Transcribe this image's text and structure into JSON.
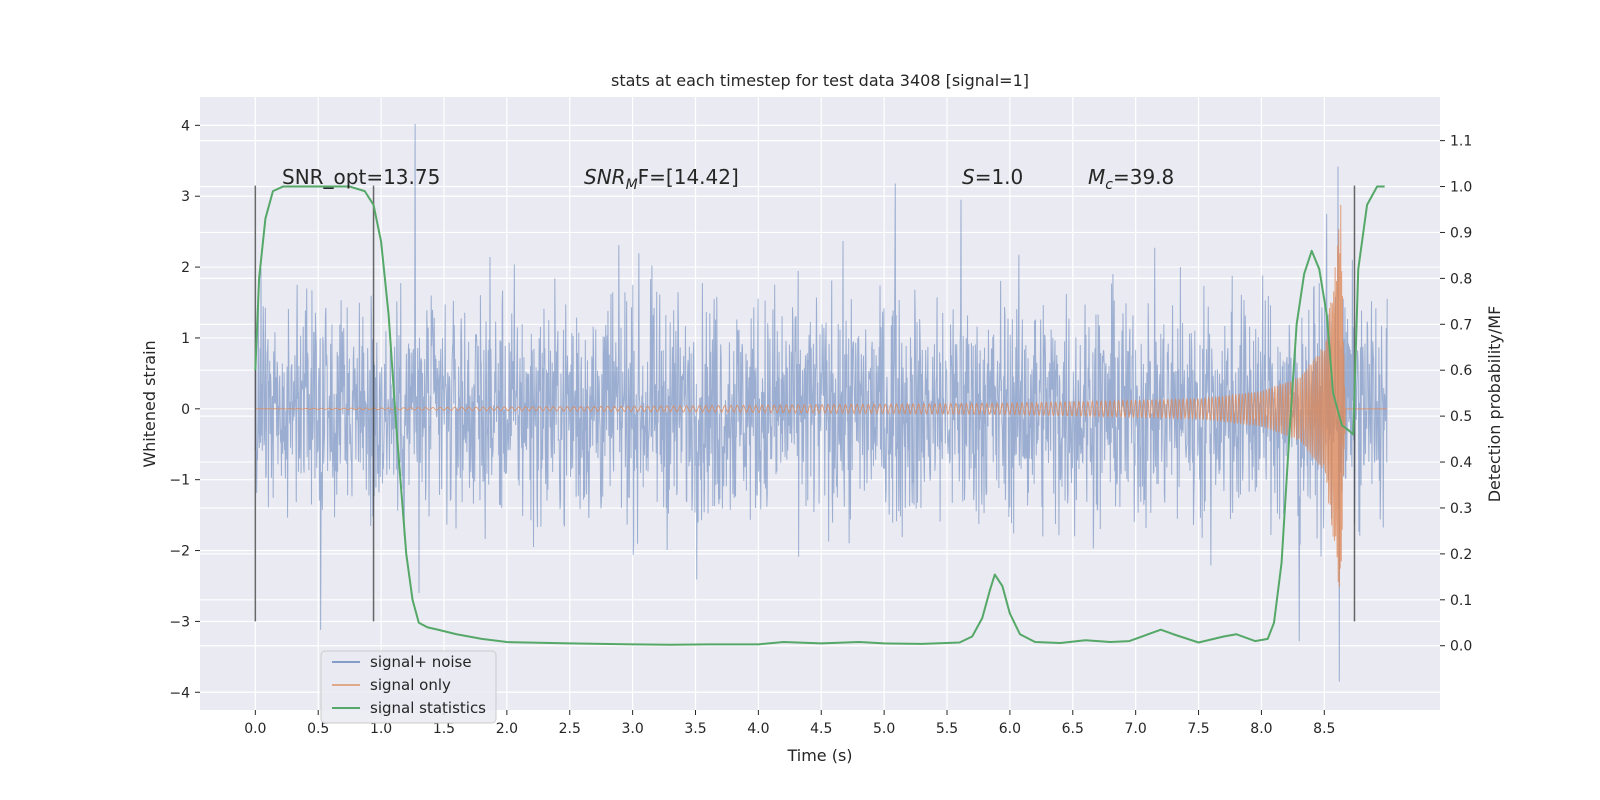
{
  "chart_data": {
    "type": "line",
    "title": "stats at each timestep for test data 3408 [signal=1]",
    "xlabel": "Time (s)",
    "ylabel_left": "Whitened strain",
    "ylabel_right": "Detection probability/MF",
    "xlim": [
      -0.44,
      9.42
    ],
    "ylim_left": [
      -4.25,
      4.4
    ],
    "ylim_right": [
      -0.14,
      1.195
    ],
    "x_ticks": [
      0.0,
      0.5,
      1.0,
      1.5,
      2.0,
      2.5,
      3.0,
      3.5,
      4.0,
      4.5,
      5.0,
      5.5,
      6.0,
      6.5,
      7.0,
      7.5,
      8.0,
      8.5
    ],
    "x_tick_labels": [
      "0.0",
      "0.5",
      "1.0",
      "1.5",
      "2.0",
      "2.5",
      "3.0",
      "3.5",
      "4.0",
      "4.5",
      "5.0",
      "5.5",
      "6.0",
      "6.5",
      "7.0",
      "7.5",
      "8.0",
      "8.5"
    ],
    "y_left_ticks": [
      4,
      3,
      2,
      1,
      0,
      -1,
      -2,
      -3,
      -4
    ],
    "y_left_tick_labels": [
      "4",
      "3",
      "2",
      "1",
      "0",
      "−1",
      "−2",
      "−3",
      "−4"
    ],
    "y_right_ticks": [
      1.1,
      1.0,
      0.9,
      0.8,
      0.7,
      0.6,
      0.5,
      0.4,
      0.3,
      0.2,
      0.1,
      0.0
    ],
    "y_right_tick_labels": [
      "1.1",
      "1.0",
      "0.9",
      "0.8",
      "0.7",
      "0.6",
      "0.5",
      "0.4",
      "0.3",
      "0.2",
      "0.1",
      "0.0"
    ],
    "grid": true,
    "legend_position": "lower-left",
    "annotations": {
      "snr_opt": "SNR_opt=13.75",
      "snr_mf_base": "SNR",
      "snr_mf_sub": "M",
      "snr_mf_tail": "F=[14.42]",
      "s_var": "S",
      "s_val": "=1.0",
      "mc_var": "M",
      "mc_sub": "c",
      "mc_val": "=39.8"
    },
    "vertical_markers": [
      {
        "x": 0.0,
        "y_bottom": -3.0,
        "y_top": 3.15
      },
      {
        "x": 0.94,
        "y_bottom": -3.0,
        "y_top": 3.15
      },
      {
        "x": 8.74,
        "y_bottom": -3.0,
        "y_top": 3.15
      }
    ],
    "series": [
      {
        "name": "signal+ noise",
        "color": "#4c72b0",
        "axis": "left",
        "x_range": [
          0.0,
          9.0
        ],
        "envelope_typical": 1.3,
        "spikes_high": [
          {
            "x": 1.27,
            "y": 4.02
          },
          {
            "x": 1.3,
            "y": 2.85
          },
          {
            "x": 5.09,
            "y": 3.18
          },
          {
            "x": 5.61,
            "y": 2.95
          },
          {
            "x": 8.61,
            "y": 3.42
          },
          {
            "x": 8.52,
            "y": 2.75
          }
        ],
        "spikes_low": [
          {
            "x": 0.52,
            "y": -3.12
          },
          {
            "x": 8.3,
            "y": -3.28
          },
          {
            "x": 8.62,
            "y": -3.85
          },
          {
            "x": 1.3,
            "y": -2.6
          }
        ]
      },
      {
        "name": "signal only",
        "color": "#dd8452",
        "axis": "left",
        "chirp": [
          {
            "x": 0.0,
            "y": 0.0
          },
          {
            "x": 4.0,
            "y": 0.05
          },
          {
            "x": 6.0,
            "y": 0.08
          },
          {
            "x": 7.5,
            "y": 0.14
          },
          {
            "x": 8.0,
            "y": 0.25
          },
          {
            "x": 8.3,
            "y": 0.45
          },
          {
            "x": 8.5,
            "y": 0.9
          },
          {
            "x": 8.6,
            "y": 2.2
          },
          {
            "x": 8.63,
            "y": 3.0
          },
          {
            "x": 8.66,
            "y": 0.4
          },
          {
            "x": 9.0,
            "y": 0.0
          }
        ]
      },
      {
        "name": "signal statistics",
        "color": "#55a868",
        "axis": "right",
        "x": [
          0.0,
          0.03,
          0.08,
          0.14,
          0.22,
          0.32,
          0.45,
          0.6,
          0.75,
          0.87,
          0.94,
          1.0,
          1.06,
          1.12,
          1.2,
          1.25,
          1.3,
          1.37,
          1.45,
          1.6,
          1.8,
          2.0,
          2.5,
          3.0,
          3.3,
          3.6,
          4.0,
          4.2,
          4.5,
          4.8,
          5.0,
          5.3,
          5.6,
          5.7,
          5.78,
          5.84,
          5.88,
          5.94,
          6.0,
          6.08,
          6.2,
          6.4,
          6.6,
          6.8,
          6.95,
          7.1,
          7.2,
          7.3,
          7.5,
          7.7,
          7.8,
          7.95,
          8.05,
          8.1,
          8.16,
          8.22,
          8.28,
          8.34,
          8.4,
          8.46,
          8.52,
          8.57,
          8.64,
          8.69,
          8.73,
          8.77,
          8.84,
          8.92,
          8.98
        ],
        "values": [
          0.6,
          0.8,
          0.93,
          0.99,
          1.0,
          1.0,
          1.0,
          1.0,
          1.0,
          0.99,
          0.96,
          0.88,
          0.72,
          0.48,
          0.2,
          0.1,
          0.05,
          0.04,
          0.035,
          0.025,
          0.015,
          0.008,
          0.005,
          0.003,
          0.002,
          0.003,
          0.003,
          0.008,
          0.005,
          0.008,
          0.005,
          0.004,
          0.007,
          0.02,
          0.06,
          0.12,
          0.155,
          0.13,
          0.07,
          0.025,
          0.008,
          0.006,
          0.012,
          0.008,
          0.01,
          0.025,
          0.035,
          0.025,
          0.007,
          0.02,
          0.025,
          0.01,
          0.015,
          0.05,
          0.18,
          0.45,
          0.7,
          0.81,
          0.86,
          0.82,
          0.72,
          0.55,
          0.48,
          0.47,
          0.46,
          0.82,
          0.96,
          1.0,
          1.0
        ]
      }
    ]
  }
}
